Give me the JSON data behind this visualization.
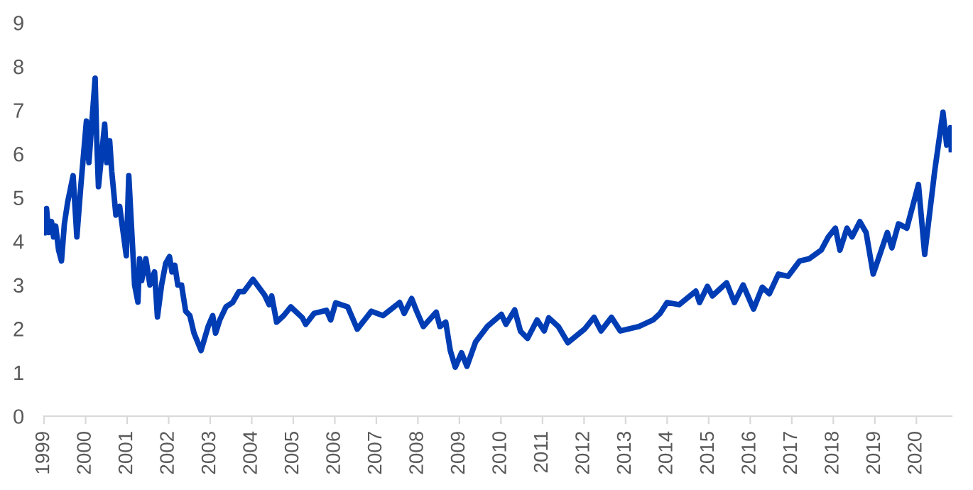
{
  "chart_data": {
    "type": "line",
    "xlim": [
      1999,
      2020.85
    ],
    "ylim": [
      0,
      9
    ],
    "xticks": [
      1999,
      2000,
      2001,
      2002,
      2003,
      2004,
      2005,
      2006,
      2007,
      2008,
      2009,
      2010,
      2011,
      2012,
      2013,
      2014,
      2015,
      2016,
      2017,
      2018,
      2019,
      2020
    ],
    "yticks": [
      0,
      1,
      2,
      3,
      4,
      5,
      6,
      7,
      8,
      9
    ],
    "grid": false,
    "marker": "none",
    "line_style": "solid",
    "series": [
      {
        "color": "#003db4",
        "x": [
          1999.0,
          1999.06,
          1999.11,
          1999.18,
          1999.23,
          1999.28,
          1999.35,
          1999.42,
          1999.49,
          1999.57,
          1999.7,
          1999.79,
          1999.88,
          2000.02,
          2000.08,
          2000.23,
          2000.27,
          2000.31,
          2000.46,
          2000.51,
          2000.58,
          2000.63,
          2000.73,
          2000.82,
          2000.98,
          2001.04,
          2001.13,
          2001.18,
          2001.26,
          2001.3,
          2001.35,
          2001.45,
          2001.55,
          2001.66,
          2001.73,
          2001.83,
          2001.93,
          2002.02,
          2002.08,
          2002.15,
          2002.22,
          2002.31,
          2002.41,
          2002.51,
          2002.61,
          2002.78,
          2002.95,
          2003.06,
          2003.13,
          2003.23,
          2003.38,
          2003.54,
          2003.69,
          2003.81,
          2004.03,
          2004.31,
          2004.42,
          2004.48,
          2004.6,
          2004.77,
          2004.94,
          2005.22,
          2005.3,
          2005.5,
          2005.8,
          2005.9,
          2006.02,
          2006.31,
          2006.54,
          2006.88,
          2007.16,
          2007.56,
          2007.67,
          2007.85,
          2007.97,
          2008.13,
          2008.44,
          2008.53,
          2008.67,
          2008.78,
          2008.9,
          2009.05,
          2009.18,
          2009.39,
          2009.67,
          2010.01,
          2010.12,
          2010.33,
          2010.47,
          2010.64,
          2010.87,
          2011.04,
          2011.15,
          2011.38,
          2011.61,
          2011.79,
          2012.02,
          2012.24,
          2012.41,
          2012.66,
          2012.87,
          2013.32,
          2013.66,
          2013.83,
          2014.0,
          2014.29,
          2014.69,
          2014.78,
          2014.97,
          2015.09,
          2015.43,
          2015.62,
          2015.83,
          2016.08,
          2016.29,
          2016.46,
          2016.68,
          2016.91,
          2017.19,
          2017.42,
          2017.71,
          2017.88,
          2018.05,
          2018.16,
          2018.33,
          2018.45,
          2018.64,
          2018.79,
          2018.96,
          2019.3,
          2019.41,
          2019.57,
          2019.77,
          2020.05,
          2020.2,
          2020.44,
          2020.64,
          2020.73,
          2020.82,
          2020.84
        ],
        "values": [
          4.2,
          4.75,
          4.2,
          4.45,
          4.1,
          4.35,
          3.8,
          3.55,
          4.4,
          4.9,
          5.5,
          4.1,
          5.2,
          6.75,
          5.8,
          7.73,
          6.3,
          5.25,
          6.68,
          5.8,
          6.3,
          5.6,
          4.6,
          4.8,
          3.67,
          5.5,
          3.9,
          3.0,
          2.61,
          3.6,
          3.1,
          3.6,
          3.0,
          3.3,
          2.27,
          3.0,
          3.5,
          3.65,
          3.3,
          3.45,
          3.0,
          3.0,
          2.4,
          2.3,
          1.9,
          1.5,
          2.05,
          2.3,
          1.9,
          2.2,
          2.5,
          2.6,
          2.85,
          2.85,
          3.13,
          2.77,
          2.55,
          2.75,
          2.15,
          2.3,
          2.5,
          2.25,
          2.1,
          2.35,
          2.42,
          2.2,
          2.59,
          2.5,
          1.99,
          2.4,
          2.3,
          2.6,
          2.35,
          2.69,
          2.4,
          2.05,
          2.38,
          2.05,
          2.15,
          1.5,
          1.12,
          1.45,
          1.14,
          1.7,
          2.05,
          2.33,
          2.1,
          2.43,
          1.94,
          1.78,
          2.2,
          1.95,
          2.25,
          2.05,
          1.68,
          1.82,
          2.0,
          2.26,
          1.95,
          2.26,
          1.95,
          2.05,
          2.2,
          2.35,
          2.6,
          2.55,
          2.86,
          2.6,
          2.97,
          2.75,
          3.05,
          2.6,
          3.0,
          2.45,
          2.95,
          2.8,
          3.25,
          3.2,
          3.55,
          3.6,
          3.8,
          4.1,
          4.3,
          3.8,
          4.3,
          4.1,
          4.45,
          4.2,
          3.25,
          4.2,
          3.85,
          4.4,
          4.3,
          5.3,
          3.7,
          5.6,
          6.95,
          6.2,
          6.6,
          6.1
        ]
      }
    ]
  }
}
